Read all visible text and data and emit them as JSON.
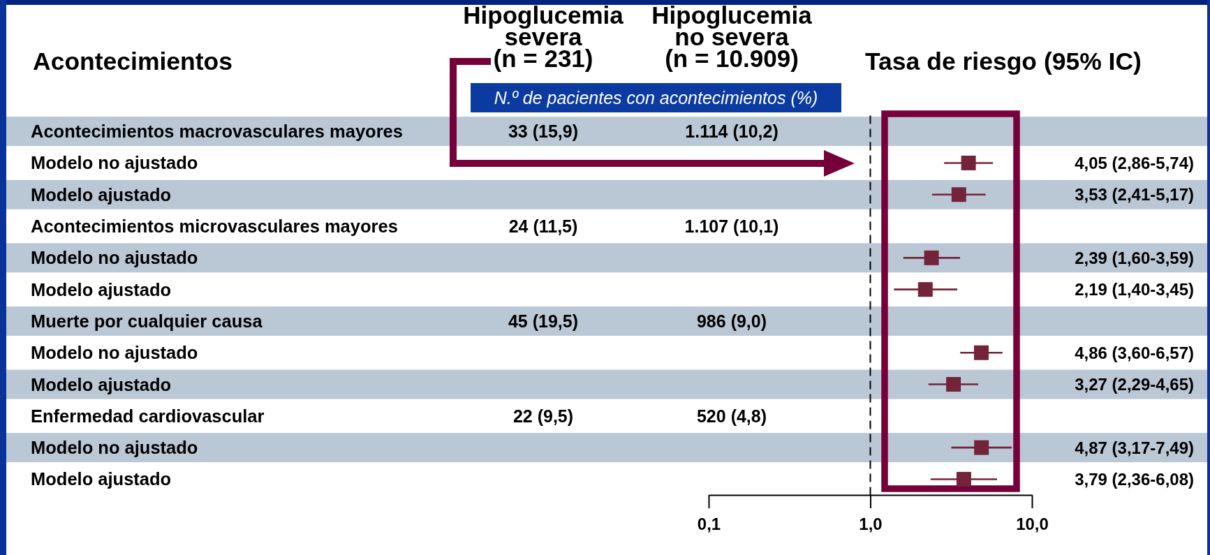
{
  "chart_data": [
    {
      "type": "other",
      "ylabel": "Acontecimientos",
      "annotations": [
        "N.º de pacientes con acontecimientos (%)"
      ],
      "categories": [
        "Acontecimientos macrovasculares mayores",
        "Modelo no ajustado",
        "Modelo ajustado",
        "Acontecimientos microvasculares mayores",
        "Modelo no ajustado",
        "Modelo ajustado",
        "Muerte por cualquier causa",
        "Modelo no ajustado",
        "Modelo ajustado",
        "Enfermedad cardiovascular",
        "Modelo no ajustado",
        "Modelo ajustado"
      ],
      "series": [
        {
          "name": "Hipoglucemia severa (n = 231)",
          "values": [
            33,
            null,
            null,
            24,
            null,
            null,
            45,
            null,
            null,
            22,
            null,
            null
          ],
          "value_labels": [
            "33 (15,9)",
            null,
            null,
            "24 (11,5)",
            null,
            null,
            "45 (19,5)",
            null,
            null,
            "22 (9,5)",
            null,
            null
          ]
        },
        {
          "name": "Hipoglucemia no severa (n = 10.909)",
          "values": [
            1114,
            null,
            null,
            1107,
            null,
            null,
            986,
            null,
            null,
            520,
            null,
            null
          ],
          "value_labels": [
            "1.114 (10,2)",
            null,
            null,
            "1.107 (10,1)",
            null,
            null,
            "986 (9,0)",
            null,
            null,
            "520 (4,8)",
            null,
            null
          ]
        }
      ]
    },
    {
      "type": "scatter",
      "orientation": "horizontal",
      "xlabel": "Tasa de riesgo (95% IC)",
      "categories": [
        null,
        null,
        null,
        null,
        null,
        null,
        null,
        null,
        null,
        null,
        null,
        null
      ],
      "log": "x",
      "xlim": [
        0.1,
        10
      ],
      "xticks": [
        {
          "value": 0.1,
          "label": "0,1"
        },
        {
          "value": 1,
          "label": "1,0"
        },
        {
          "value": 10,
          "label": "10,0"
        }
      ],
      "ref_lines": [
        {
          "axis": "x",
          "value": 1,
          "line_style": "dashed",
          "color": "#000000"
        }
      ],
      "marker": "square",
      "series": [
        {
          "color": "#73243a",
          "values": [
            null,
            4.05,
            3.53,
            null,
            2.39,
            2.19,
            null,
            4.86,
            3.27,
            null,
            4.87,
            3.79
          ],
          "errors": [
            null,
            [
              2.86,
              5.74
            ],
            [
              2.41,
              5.17
            ],
            null,
            [
              1.6,
              3.59
            ],
            [
              1.4,
              3.45
            ],
            null,
            [
              3.6,
              6.57
            ],
            [
              2.29,
              4.65
            ],
            null,
            [
              3.17,
              7.49
            ],
            [
              2.36,
              6.08
            ]
          ],
          "value_labels": [
            null,
            "4,05 (2,86-5,74)",
            "3,53 (2,41-5,17)",
            null,
            "2,39 (1,60-3,59)",
            "2,19 (1,40-3,45)",
            null,
            "4,86 (3,60-6,57)",
            "3,27 (2,29-4,65)",
            null,
            "4,87 (3,17-7,49)",
            "3,79 (2,36-6,08)"
          ]
        }
      ]
    }
  ]
}
